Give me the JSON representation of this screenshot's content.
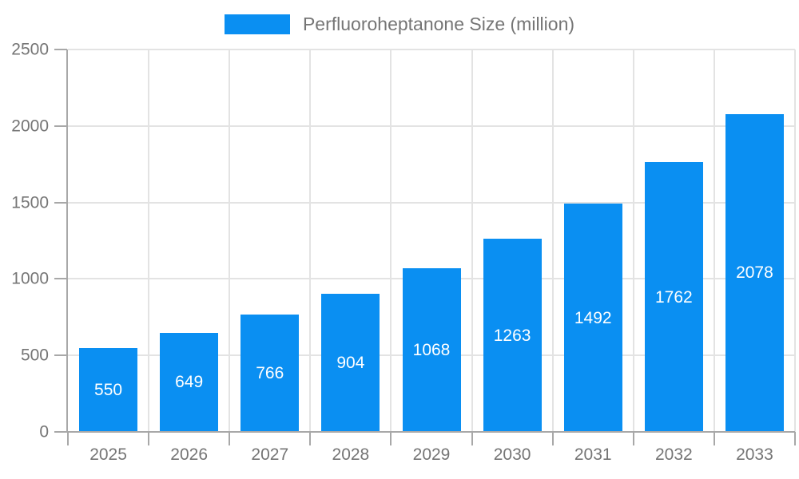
{
  "chart_data": {
    "type": "bar",
    "title": "",
    "legend_label": "Perfluoroheptanone Size (million)",
    "legend_position": "top-center",
    "categories": [
      "2025",
      "2026",
      "2027",
      "2028",
      "2029",
      "2030",
      "2031",
      "2032",
      "2033"
    ],
    "values": [
      550,
      649,
      766,
      904,
      1068,
      1263,
      1492,
      1762,
      2078
    ],
    "xlabel": "",
    "ylabel": "",
    "ylim": [
      0,
      2500
    ],
    "yticks": [
      0,
      500,
      1000,
      1500,
      2000,
      2500
    ],
    "grid": true,
    "value_labels_shown": true,
    "colors": {
      "bar": "#0a8ff2",
      "axis_label": "#757575",
      "value_label": "#ffffff",
      "gridline": "#e3e3e3",
      "axis_line": "#a8a8a8",
      "background": "#ffffff"
    }
  }
}
